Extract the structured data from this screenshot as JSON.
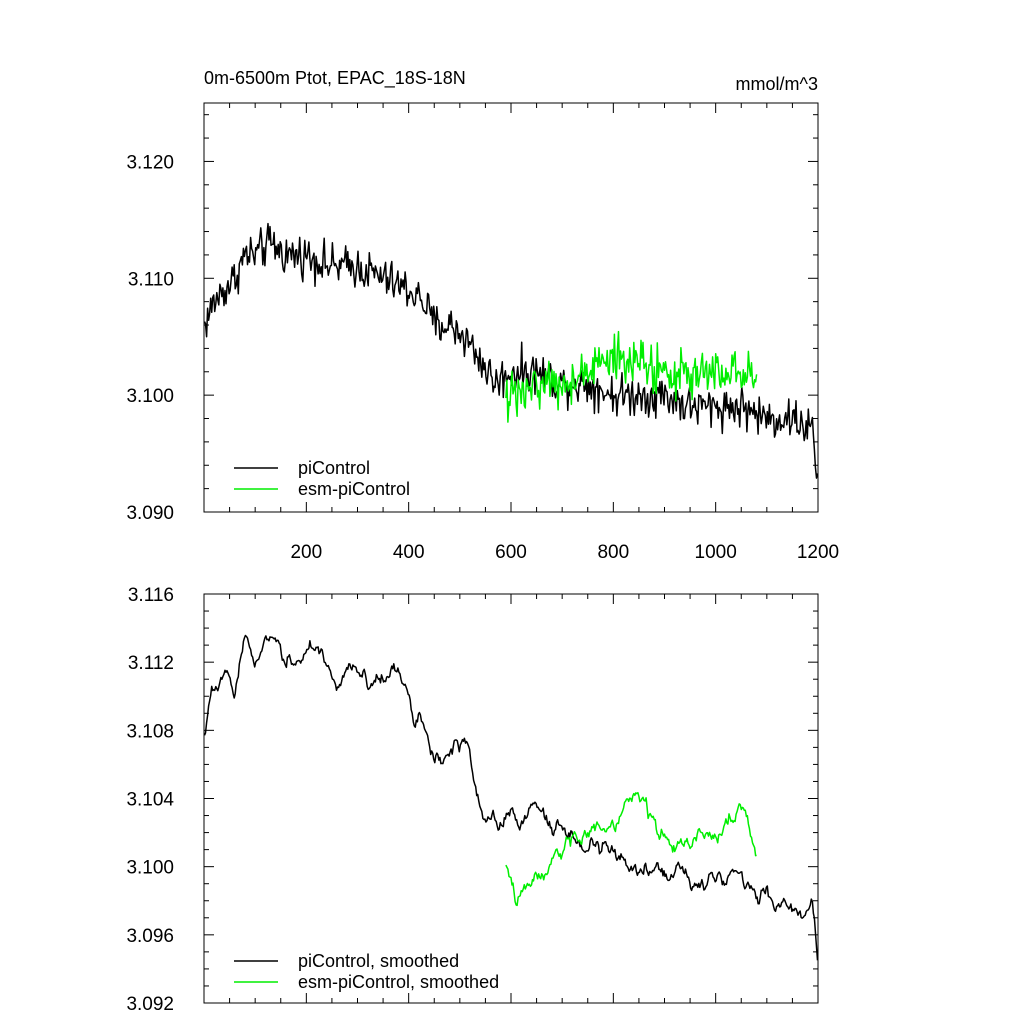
{
  "title_left": "0m-6500m Ptot, EPAC_18S-18N",
  "title_right": "mmol/m^3",
  "colors": {
    "piControl": "#000000",
    "esm_piControl": "#00ee00"
  },
  "chart_data": [
    {
      "type": "line",
      "panel": "top",
      "xlim": [
        0,
        1200
      ],
      "ylim": [
        3.09,
        3.125
      ],
      "xticks": [
        200,
        400,
        600,
        800,
        1000,
        1200
      ],
      "xtick_labels": [
        "200",
        "400",
        "600",
        "800",
        "1000",
        "1200"
      ],
      "yticks": [
        3.09,
        3.1,
        3.11,
        3.12
      ],
      "ytick_labels": [
        "3.090",
        "3.100",
        "3.110",
        "3.120"
      ],
      "legend_placement": "bottom-left",
      "grid": false,
      "series": [
        {
          "name": "piControl",
          "color": "#000000",
          "x_start": 1,
          "x_end": 1200,
          "anchors": [
            [
              1,
              3.106
            ],
            [
              20,
              3.108
            ],
            [
              40,
              3.109
            ],
            [
              60,
              3.11
            ],
            [
              80,
              3.112
            ],
            [
              100,
              3.112
            ],
            [
              130,
              3.113
            ],
            [
              160,
              3.112
            ],
            [
              200,
              3.112
            ],
            [
              250,
              3.111
            ],
            [
              300,
              3.111
            ],
            [
              350,
              3.11
            ],
            [
              400,
              3.109
            ],
            [
              430,
              3.108
            ],
            [
              450,
              3.106
            ],
            [
              480,
              3.106
            ],
            [
              510,
              3.105
            ],
            [
              540,
              3.103
            ],
            [
              570,
              3.101
            ],
            [
              600,
              3.102
            ],
            [
              650,
              3.102
            ],
            [
              700,
              3.101
            ],
            [
              750,
              3.101
            ],
            [
              800,
              3.1
            ],
            [
              850,
              3.1
            ],
            [
              900,
              3.1
            ],
            [
              950,
              3.099
            ],
            [
              1000,
              3.099
            ],
            [
              1050,
              3.099
            ],
            [
              1100,
              3.098
            ],
            [
              1150,
              3.098
            ],
            [
              1190,
              3.097
            ],
            [
              1200,
              3.092
            ]
          ],
          "noise": 0.0026
        },
        {
          "name": "esm-piControl",
          "color": "#00ee00",
          "x_start": 590,
          "x_end": 1080,
          "anchors": [
            [
              590,
              3.1
            ],
            [
              620,
              3.1
            ],
            [
              650,
              3.101
            ],
            [
              700,
              3.101
            ],
            [
              750,
              3.102
            ],
            [
              800,
              3.103
            ],
            [
              850,
              3.103
            ],
            [
              900,
              3.102
            ],
            [
              950,
              3.102
            ],
            [
              1000,
              3.102
            ],
            [
              1050,
              3.102
            ],
            [
              1080,
              3.101
            ]
          ],
          "noise": 0.003
        }
      ]
    },
    {
      "type": "line",
      "panel": "bottom",
      "xlim": [
        0,
        1200
      ],
      "ylim": [
        3.092,
        3.116
      ],
      "yticks": [
        3.092,
        3.096,
        3.1,
        3.104,
        3.108,
        3.112,
        3.116
      ],
      "ytick_labels": [
        "3.092",
        "3.096",
        "3.100",
        "3.104",
        "3.108",
        "3.112",
        "3.116"
      ],
      "legend_placement": "bottom-left",
      "grid": false,
      "series": [
        {
          "name": "piControl, smoothed",
          "color": "#000000",
          "x_start": 1,
          "x_end": 1200,
          "anchors": [
            [
              1,
              3.1075
            ],
            [
              15,
              3.11
            ],
            [
              40,
              3.111
            ],
            [
              60,
              3.11
            ],
            [
              80,
              3.114
            ],
            [
              100,
              3.112
            ],
            [
              130,
              3.114
            ],
            [
              160,
              3.112
            ],
            [
              200,
              3.113
            ],
            [
              230,
              3.112
            ],
            [
              260,
              3.111
            ],
            [
              290,
              3.112
            ],
            [
              320,
              3.111
            ],
            [
              350,
              3.111
            ],
            [
              380,
              3.112
            ],
            [
              400,
              3.11
            ],
            [
              420,
              3.109
            ],
            [
              450,
              3.106
            ],
            [
              470,
              3.106
            ],
            [
              500,
              3.107
            ],
            [
              520,
              3.106
            ],
            [
              540,
              3.103
            ],
            [
              560,
              3.102
            ],
            [
              600,
              3.103
            ],
            [
              650,
              3.103
            ],
            [
              700,
              3.102
            ],
            [
              750,
              3.102
            ],
            [
              800,
              3.101
            ],
            [
              850,
              3.1
            ],
            [
              900,
              3.1
            ],
            [
              950,
              3.099
            ],
            [
              1000,
              3.099
            ],
            [
              1050,
              3.099
            ],
            [
              1100,
              3.098
            ],
            [
              1150,
              3.097
            ],
            [
              1190,
              3.098
            ],
            [
              1200,
              3.094
            ]
          ],
          "noise": 0.001
        },
        {
          "name": "esm-piControl, smoothed",
          "color": "#00ee00",
          "x_start": 590,
          "x_end": 1080,
          "anchors": [
            [
              590,
              3.1
            ],
            [
              610,
              3.098
            ],
            [
              640,
              3.099
            ],
            [
              680,
              3.1
            ],
            [
              720,
              3.101
            ],
            [
              760,
              3.102
            ],
            [
              800,
              3.102
            ],
            [
              840,
              3.104
            ],
            [
              860,
              3.105
            ],
            [
              880,
              3.102
            ],
            [
              920,
              3.101
            ],
            [
              960,
              3.102
            ],
            [
              1000,
              3.102
            ],
            [
              1030,
              3.103
            ],
            [
              1060,
              3.103
            ],
            [
              1080,
              3.101
            ]
          ],
          "noise": 0.001
        }
      ]
    }
  ]
}
